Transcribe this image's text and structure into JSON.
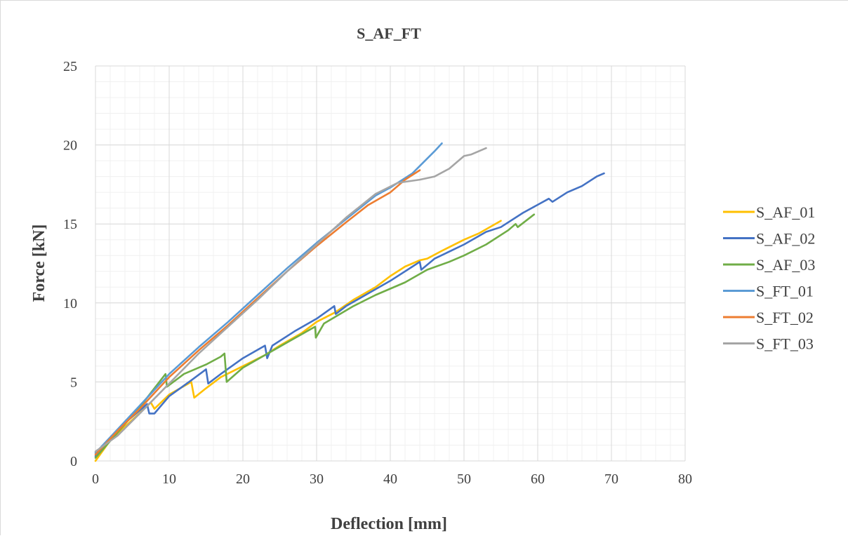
{
  "chart_data": {
    "type": "line",
    "title": "S_AF_FT",
    "xlabel": "Deflection [mm]",
    "ylabel": "Force [kN]",
    "xlim": [
      0,
      80
    ],
    "ylim": [
      0,
      25
    ],
    "x_ticks": [
      "0",
      "10",
      "20",
      "30",
      "40",
      "50",
      "60",
      "70",
      "80"
    ],
    "y_ticks": [
      "0",
      "5",
      "10",
      "15",
      "20",
      "25"
    ],
    "grid": "major and minor",
    "legend_position": "right",
    "series": [
      {
        "name": "S_AF_01",
        "color": "#ffc000",
        "points": [
          [
            0,
            0
          ],
          [
            2,
            1.3
          ],
          [
            5,
            2.6
          ],
          [
            7.5,
            3.7
          ],
          [
            8,
            3.3
          ],
          [
            10,
            4.2
          ],
          [
            13,
            5.0
          ],
          [
            13.4,
            4.0
          ],
          [
            15,
            4.6
          ],
          [
            17,
            5.3
          ],
          [
            20,
            6.0
          ],
          [
            23,
            6.7
          ],
          [
            25,
            7.3
          ],
          [
            28,
            8.1
          ],
          [
            30,
            8.8
          ],
          [
            32.5,
            9.4
          ],
          [
            35,
            10.2
          ],
          [
            38,
            11.0
          ],
          [
            40,
            11.7
          ],
          [
            42,
            12.3
          ],
          [
            44,
            12.7
          ],
          [
            45,
            12.8
          ],
          [
            47,
            13.3
          ],
          [
            50,
            14.0
          ],
          [
            52,
            14.4
          ],
          [
            55,
            15.2
          ]
        ]
      },
      {
        "name": "S_AF_02",
        "color": "#4472c4",
        "points": [
          [
            0,
            0.3
          ],
          [
            2,
            1.4
          ],
          [
            4,
            2.4
          ],
          [
            7,
            3.6
          ],
          [
            7.3,
            3.0
          ],
          [
            8,
            3.0
          ],
          [
            10,
            4.1
          ],
          [
            13,
            5.1
          ],
          [
            15,
            5.8
          ],
          [
            15.3,
            4.9
          ],
          [
            17,
            5.5
          ],
          [
            20,
            6.5
          ],
          [
            23,
            7.3
          ],
          [
            23.3,
            6.5
          ],
          [
            24,
            7.3
          ],
          [
            27,
            8.2
          ],
          [
            30,
            9.0
          ],
          [
            32.4,
            9.8
          ],
          [
            32.6,
            9.3
          ],
          [
            34,
            9.8
          ],
          [
            37,
            10.6
          ],
          [
            40,
            11.4
          ],
          [
            43,
            12.3
          ],
          [
            44,
            12.6
          ],
          [
            44.2,
            12.1
          ],
          [
            46,
            12.8
          ],
          [
            50,
            13.7
          ],
          [
            53,
            14.5
          ],
          [
            55,
            14.8
          ],
          [
            58,
            15.7
          ],
          [
            61.5,
            16.6
          ],
          [
            62,
            16.4
          ],
          [
            64,
            17.0
          ],
          [
            66,
            17.4
          ],
          [
            68,
            18.0
          ],
          [
            69,
            18.2
          ]
        ]
      },
      {
        "name": "S_AF_03",
        "color": "#70ad47",
        "points": [
          [
            0,
            0.2
          ],
          [
            3,
            1.8
          ],
          [
            6,
            3.4
          ],
          [
            9.5,
            5.5
          ],
          [
            9.7,
            4.7
          ],
          [
            12,
            5.5
          ],
          [
            15,
            6.1
          ],
          [
            17,
            6.6
          ],
          [
            17.5,
            6.8
          ],
          [
            17.8,
            5.0
          ],
          [
            20,
            5.9
          ],
          [
            23,
            6.7
          ],
          [
            26,
            7.5
          ],
          [
            29.8,
            8.5
          ],
          [
            29.9,
            7.8
          ],
          [
            31,
            8.7
          ],
          [
            35,
            9.8
          ],
          [
            38,
            10.5
          ],
          [
            40,
            10.9
          ],
          [
            42,
            11.3
          ],
          [
            45,
            12.1
          ],
          [
            48,
            12.6
          ],
          [
            50,
            13.0
          ],
          [
            53,
            13.7
          ],
          [
            56,
            14.6
          ],
          [
            57,
            15.0
          ],
          [
            57.3,
            14.8
          ],
          [
            59.5,
            15.6
          ]
        ]
      },
      {
        "name": "S_FT_01",
        "color": "#5b9bd5",
        "points": [
          [
            0,
            0.5
          ],
          [
            3,
            2.0
          ],
          [
            6,
            3.5
          ],
          [
            10,
            5.5
          ],
          [
            14,
            7.2
          ],
          [
            18,
            8.8
          ],
          [
            22,
            10.5
          ],
          [
            26,
            12.2
          ],
          [
            30,
            13.8
          ],
          [
            34,
            15.3
          ],
          [
            38,
            16.8
          ],
          [
            40,
            17.3
          ],
          [
            43,
            18.2
          ],
          [
            46,
            19.6
          ],
          [
            47,
            20.1
          ]
        ]
      },
      {
        "name": "S_FT_02",
        "color": "#ed7d31",
        "points": [
          [
            0,
            0.4
          ],
          [
            3,
            1.9
          ],
          [
            6,
            3.3
          ],
          [
            10,
            5.3
          ],
          [
            14,
            7.0
          ],
          [
            18,
            8.6
          ],
          [
            22,
            10.3
          ],
          [
            26,
            12.0
          ],
          [
            30,
            13.6
          ],
          [
            34,
            15.1
          ],
          [
            37,
            16.2
          ],
          [
            40,
            17.0
          ],
          [
            42,
            17.8
          ],
          [
            44,
            18.4
          ]
        ]
      },
      {
        "name": "S_FT_03",
        "color": "#a5a5a5",
        "points": [
          [
            0,
            0.6
          ],
          [
            3,
            1.6
          ],
          [
            6,
            3.0
          ],
          [
            10,
            4.9
          ],
          [
            14,
            6.8
          ],
          [
            18,
            8.5
          ],
          [
            22,
            10.2
          ],
          [
            26,
            12.0
          ],
          [
            30,
            13.7
          ],
          [
            34,
            15.4
          ],
          [
            38,
            16.9
          ],
          [
            41,
            17.6
          ],
          [
            44,
            17.8
          ],
          [
            46,
            18.0
          ],
          [
            48,
            18.5
          ],
          [
            50,
            19.3
          ],
          [
            51,
            19.4
          ],
          [
            53,
            19.8
          ]
        ]
      }
    ]
  }
}
